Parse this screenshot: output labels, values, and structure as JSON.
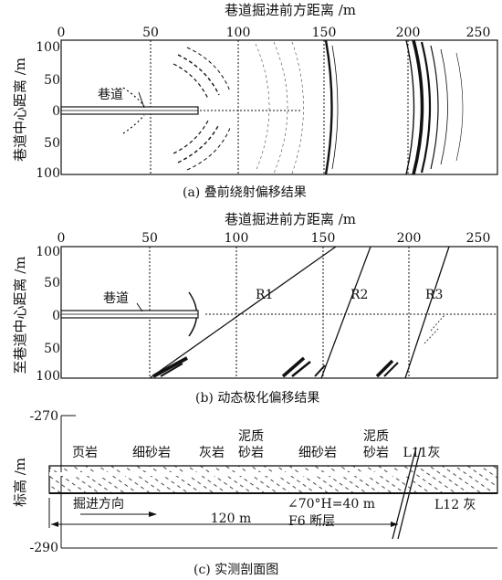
{
  "panel_a": {
    "xlabel": "巷道掘进前方距离 /m",
    "ylabel": "巷道中心距离 /m",
    "xticks": [
      "0",
      "50",
      "100",
      "150",
      "200",
      "250"
    ],
    "yticks": [
      "100",
      "50",
      "0",
      "50",
      "100"
    ],
    "tunnel_label": "巷道",
    "caption": "(a)  叠前绕射偏移结果"
  },
  "panel_b": {
    "xlabel": "巷道掘进前方距离 /m",
    "ylabel": "至巷道中心距离 /m",
    "xticks": [
      "0",
      "50",
      "100",
      "150",
      "200",
      "250"
    ],
    "yticks": [
      "100",
      "50",
      "0",
      "50",
      "100"
    ],
    "tunnel_label": "巷道",
    "reflectors": [
      "R1",
      "R2",
      "R3"
    ],
    "caption": "(b)  动态极化偏移结果"
  },
  "panel_c": {
    "top_elev": "-270",
    "bottom_elev": "-290",
    "ylabel": "标高 /m",
    "lithology": [
      "页岩",
      "细砂岩",
      "灰岩",
      "泥质砂岩",
      "细砂岩",
      "泥质砂岩",
      "L11灰"
    ],
    "lith_line1": [
      "页岩",
      "细砂岩",
      "灰岩",
      "泥质",
      "细砂岩",
      "泥质",
      "L11灰"
    ],
    "lith_line2": [
      "",
      "",
      "",
      "砂岩",
      "",
      "砂岩",
      ""
    ],
    "right_label": "L12 灰",
    "direction_label": "掘进方向",
    "distance_label": "120 m",
    "fault_angle": "∠70°H=40 m",
    "fault_name": "F6 断层",
    "caption": "(c)  实测剖面图"
  },
  "colors": {
    "ink": "#111111",
    "bg": "#ffffff"
  }
}
